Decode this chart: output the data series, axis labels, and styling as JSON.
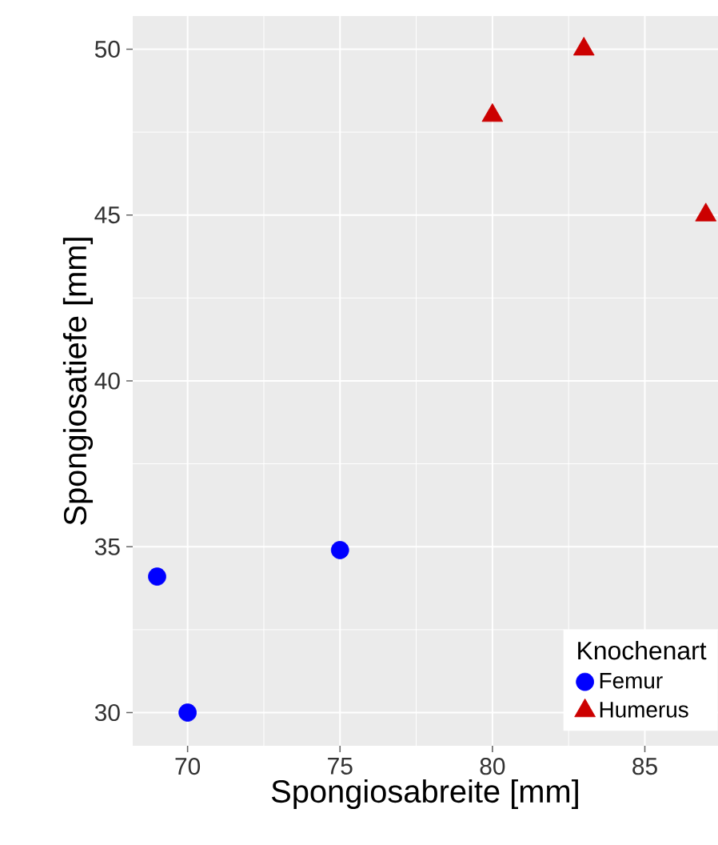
{
  "chart_data": {
    "type": "scatter",
    "xlabel": "Spongiosabreite [mm]",
    "ylabel": "Spongiosatiefe [mm]",
    "legend_title": "Knochenart",
    "series": [
      {
        "name": "Femur",
        "color": "#0000ff",
        "marker": "circle",
        "x": [
          69,
          70,
          75
        ],
        "values": [
          34.1,
          30,
          34.9
        ]
      },
      {
        "name": "Humerus",
        "color": "#cc0000",
        "marker": "triangle",
        "x": [
          80,
          83,
          87
        ],
        "values": [
          48,
          50,
          45
        ]
      }
    ],
    "xlim": [
      68.2,
      87.4
    ],
    "ylim": [
      29,
      51
    ],
    "xticks": [
      70,
      75,
      80,
      85
    ],
    "yticks": [
      30,
      35,
      40,
      45,
      50
    ],
    "grid": true,
    "legend": "bottom right"
  }
}
